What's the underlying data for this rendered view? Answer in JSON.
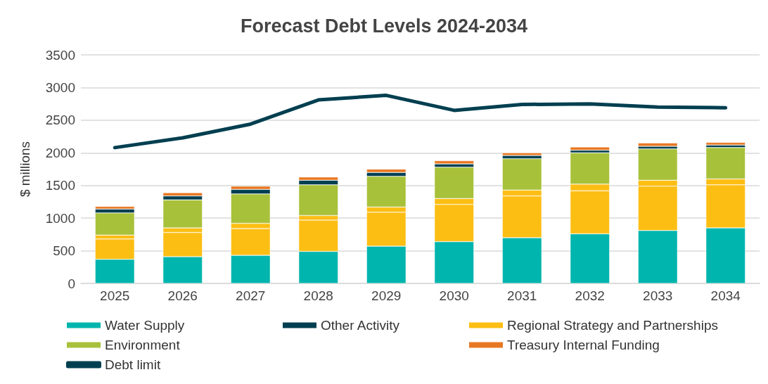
{
  "chart_data": {
    "type": "bar",
    "title": "Forecast Debt Levels 2024-2034",
    "ylabel": "$ millions",
    "categories": [
      "2025",
      "2026",
      "2027",
      "2028",
      "2029",
      "2030",
      "2031",
      "2032",
      "2033",
      "2034"
    ],
    "stacked": true,
    "ylim": [
      0,
      3500
    ],
    "yticks": [
      0,
      500,
      1000,
      1500,
      2000,
      2500,
      3000,
      3500
    ],
    "grid": "y",
    "legend": "bottom",
    "marker": "none",
    "series": [
      {
        "name": "Water Supply",
        "color": "#00b5ad",
        "values": [
          370,
          410,
          430,
          490,
          570,
          640,
          700,
          760,
          810,
          850
        ]
      },
      {
        "color": "#fdbe14",
        "values": [
          310,
          370,
          410,
          480,
          520,
          570,
          640,
          660,
          680,
          660
        ]
      },
      {
        "name": "Regional Strategy and Partnerships",
        "color": "#fdbe14",
        "values": [
          60,
          70,
          80,
          70,
          80,
          90,
          90,
          100,
          90,
          90
        ]
      },
      {
        "name": "Environment",
        "color": "#a8c13a",
        "values": [
          340,
          430,
          450,
          470,
          470,
          480,
          480,
          480,
          480,
          480
        ]
      },
      {
        "name": "Other Activity",
        "color": "#003f50",
        "values": [
          60,
          60,
          70,
          70,
          60,
          50,
          50,
          40,
          40,
          40
        ]
      },
      {
        "name": "Treasury Internal Funding",
        "color": "#e87722",
        "values": [
          40,
          50,
          50,
          50,
          50,
          50,
          40,
          50,
          50,
          40
        ]
      },
      {
        "name": "Debt limit",
        "type": "line",
        "color": "#003f50",
        "values": [
          2080,
          2230,
          2440,
          2810,
          2880,
          2650,
          2740,
          2750,
          2700,
          2690
        ]
      }
    ]
  }
}
